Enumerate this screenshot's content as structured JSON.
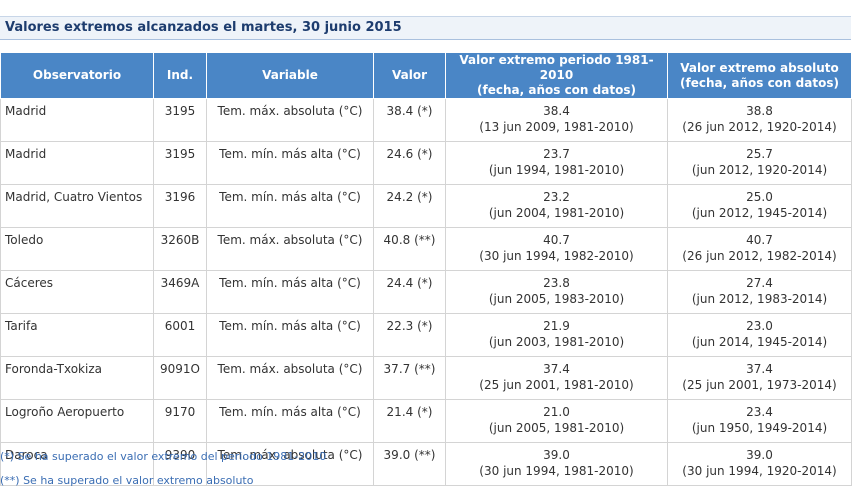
{
  "header": {
    "title": "Valores extremos alcanzados el martes, 30 junio 2015"
  },
  "table": {
    "columns": [
      "Observatorio",
      "Ind.",
      "Variable",
      "Valor",
      [
        "Valor extremo periodo 1981-2010",
        "(fecha, años con datos)"
      ],
      [
        "Valor extremo absoluto",
        "(fecha, años con datos)"
      ]
    ],
    "rows": [
      [
        "Madrid",
        "3195",
        "Tem. máx. absoluta (°C)",
        "38.4 (*)",
        [
          "38.4",
          "(13 jun 2009, 1981-2010)"
        ],
        [
          "38.8",
          "(26 jun 2012, 1920-2014)"
        ]
      ],
      [
        "Madrid",
        "3195",
        "Tem. mín. más alta (°C)",
        "24.6 (*)",
        [
          "23.7",
          "(jun 1994, 1981-2010)"
        ],
        [
          "25.7",
          "(jun 2012, 1920-2014)"
        ]
      ],
      [
        "Madrid, Cuatro Vientos",
        "3196",
        "Tem. mín. más alta (°C)",
        "24.2 (*)",
        [
          "23.2",
          "(jun 2004, 1981-2010)"
        ],
        [
          "25.0",
          "(jun 2012, 1945-2014)"
        ]
      ],
      [
        "Toledo",
        "3260B",
        "Tem. máx. absoluta (°C)",
        "40.8 (**)",
        [
          "40.7",
          "(30 jun 1994, 1982-2010)"
        ],
        [
          "40.7",
          "(26 jun 2012, 1982-2014)"
        ]
      ],
      [
        "Cáceres",
        "3469A",
        "Tem. mín. más alta (°C)",
        "24.4 (*)",
        [
          "23.8",
          "(jun 2005, 1983-2010)"
        ],
        [
          "27.4",
          "(jun 2012, 1983-2014)"
        ]
      ],
      [
        "Tarifa",
        "6001",
        "Tem. mín. más alta (°C)",
        "22.3 (*)",
        [
          "21.9",
          "(jun 2003, 1981-2010)"
        ],
        [
          "23.0",
          "(jun 2014, 1945-2014)"
        ]
      ],
      [
        "Foronda-Txokiza",
        "9091O",
        "Tem. máx. absoluta (°C)",
        "37.7 (**)",
        [
          "37.4",
          "(25 jun 2001, 1981-2010)"
        ],
        [
          "37.4",
          "(25 jun 2001, 1973-2014)"
        ]
      ],
      [
        "Logroño Aeropuerto",
        "9170",
        "Tem. mín. más alta (°C)",
        "21.4 (*)",
        [
          "21.0",
          "(jun 2005, 1981-2010)"
        ],
        [
          "23.4",
          "(jun 1950, 1949-2014)"
        ]
      ],
      [
        "Daroca",
        "9390",
        "Tem. máx. absoluta (°C)",
        "39.0 (**)",
        [
          "39.0",
          "(30 jun 1994, 1981-2010)"
        ],
        [
          "39.0",
          "(30 jun 1994, 1920-2014)"
        ]
      ]
    ]
  },
  "notes": [
    "(*) Se ha superado el valor extremo del periodo 1981-2010",
    "(**) Se ha superado el valor extremo absoluto"
  ]
}
